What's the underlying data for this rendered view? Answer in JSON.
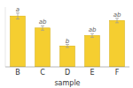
{
  "chart_data": {
    "type": "bar",
    "categories": [
      "B",
      "C",
      "D",
      "E",
      "F"
    ],
    "values": [
      68,
      52,
      28,
      42,
      62
    ],
    "errors": [
      4,
      3,
      2,
      2.5,
      3
    ],
    "annotations": [
      "a",
      "ab",
      "b",
      "ab",
      "ab"
    ],
    "color": "#F5CE30",
    "xlabel": "sample",
    "ylim": [
      0,
      80
    ],
    "yticks": [],
    "grid": false,
    "tick_labels": "x"
  }
}
